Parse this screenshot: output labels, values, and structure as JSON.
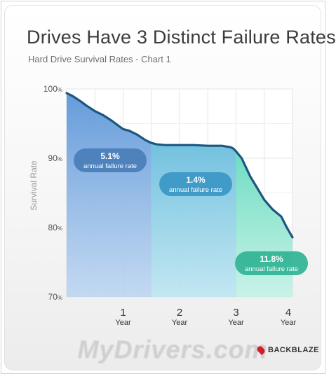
{
  "title": "Drives Have 3 Distinct Failure Rates",
  "subtitle": "Hard Drive Survival Rates - Chart 1",
  "brand": "BACKBLAZE",
  "watermark": "MyDrivers.com",
  "chart_data": {
    "type": "area",
    "title": "Drives Have 3 Distinct Failure Rates",
    "subtitle": "Hard Drive Survival Rates - Chart 1",
    "ylabel": "Survival Rate",
    "xlabel": "",
    "xlim": [
      0,
      4
    ],
    "ylim": [
      70,
      100
    ],
    "grid": true,
    "y_ticks": [
      {
        "value": 70,
        "label": "70"
      },
      {
        "value": 80,
        "label": "80"
      },
      {
        "value": 90,
        "label": "90"
      },
      {
        "value": 100,
        "label": "100"
      }
    ],
    "y_unit": "%",
    "x_ticks": [
      {
        "value": 1,
        "label": "1",
        "sub": "Year"
      },
      {
        "value": 2,
        "label": "2",
        "sub": "Year"
      },
      {
        "value": 3,
        "label": "3",
        "sub": "Year"
      },
      {
        "value": 4,
        "label": "4",
        "sub": "Year"
      }
    ],
    "series": [
      {
        "x": [
          0,
          0.1,
          0.25,
          0.35,
          0.5,
          0.65,
          0.8,
          0.9,
          1.0,
          1.1,
          1.25,
          1.4,
          1.5,
          1.6,
          1.75,
          1.9,
          2.0,
          2.25,
          2.5,
          2.75,
          2.9,
          2.95,
          3.0,
          3.1,
          3.25,
          3.5,
          3.65,
          3.8,
          3.9,
          4.0
        ],
        "y": [
          99.4,
          99.0,
          98.2,
          97.6,
          96.8,
          96.2,
          95.4,
          94.8,
          94.2,
          94.0,
          93.4,
          92.6,
          92.2,
          92.0,
          91.9,
          91.9,
          91.9,
          91.9,
          91.8,
          91.8,
          91.6,
          91.4,
          91.0,
          90.0,
          87.4,
          84.0,
          82.6,
          81.6,
          80.0,
          78.6
        ]
      }
    ],
    "regions": [
      {
        "x_start": 0,
        "x_end": 1.5,
        "label": "5.1%",
        "sublabel": "annual failure rate",
        "color": "#5f9ddc"
      },
      {
        "x_start": 1.5,
        "x_end": 3.0,
        "label": "1.4%",
        "sublabel": "annual failure rate",
        "color": "#3fa3c8"
      },
      {
        "x_start": 3.0,
        "x_end": 4.0,
        "label": "11.8%",
        "sublabel": "annual failure rate",
        "color": "#2fc0a2"
      }
    ]
  }
}
